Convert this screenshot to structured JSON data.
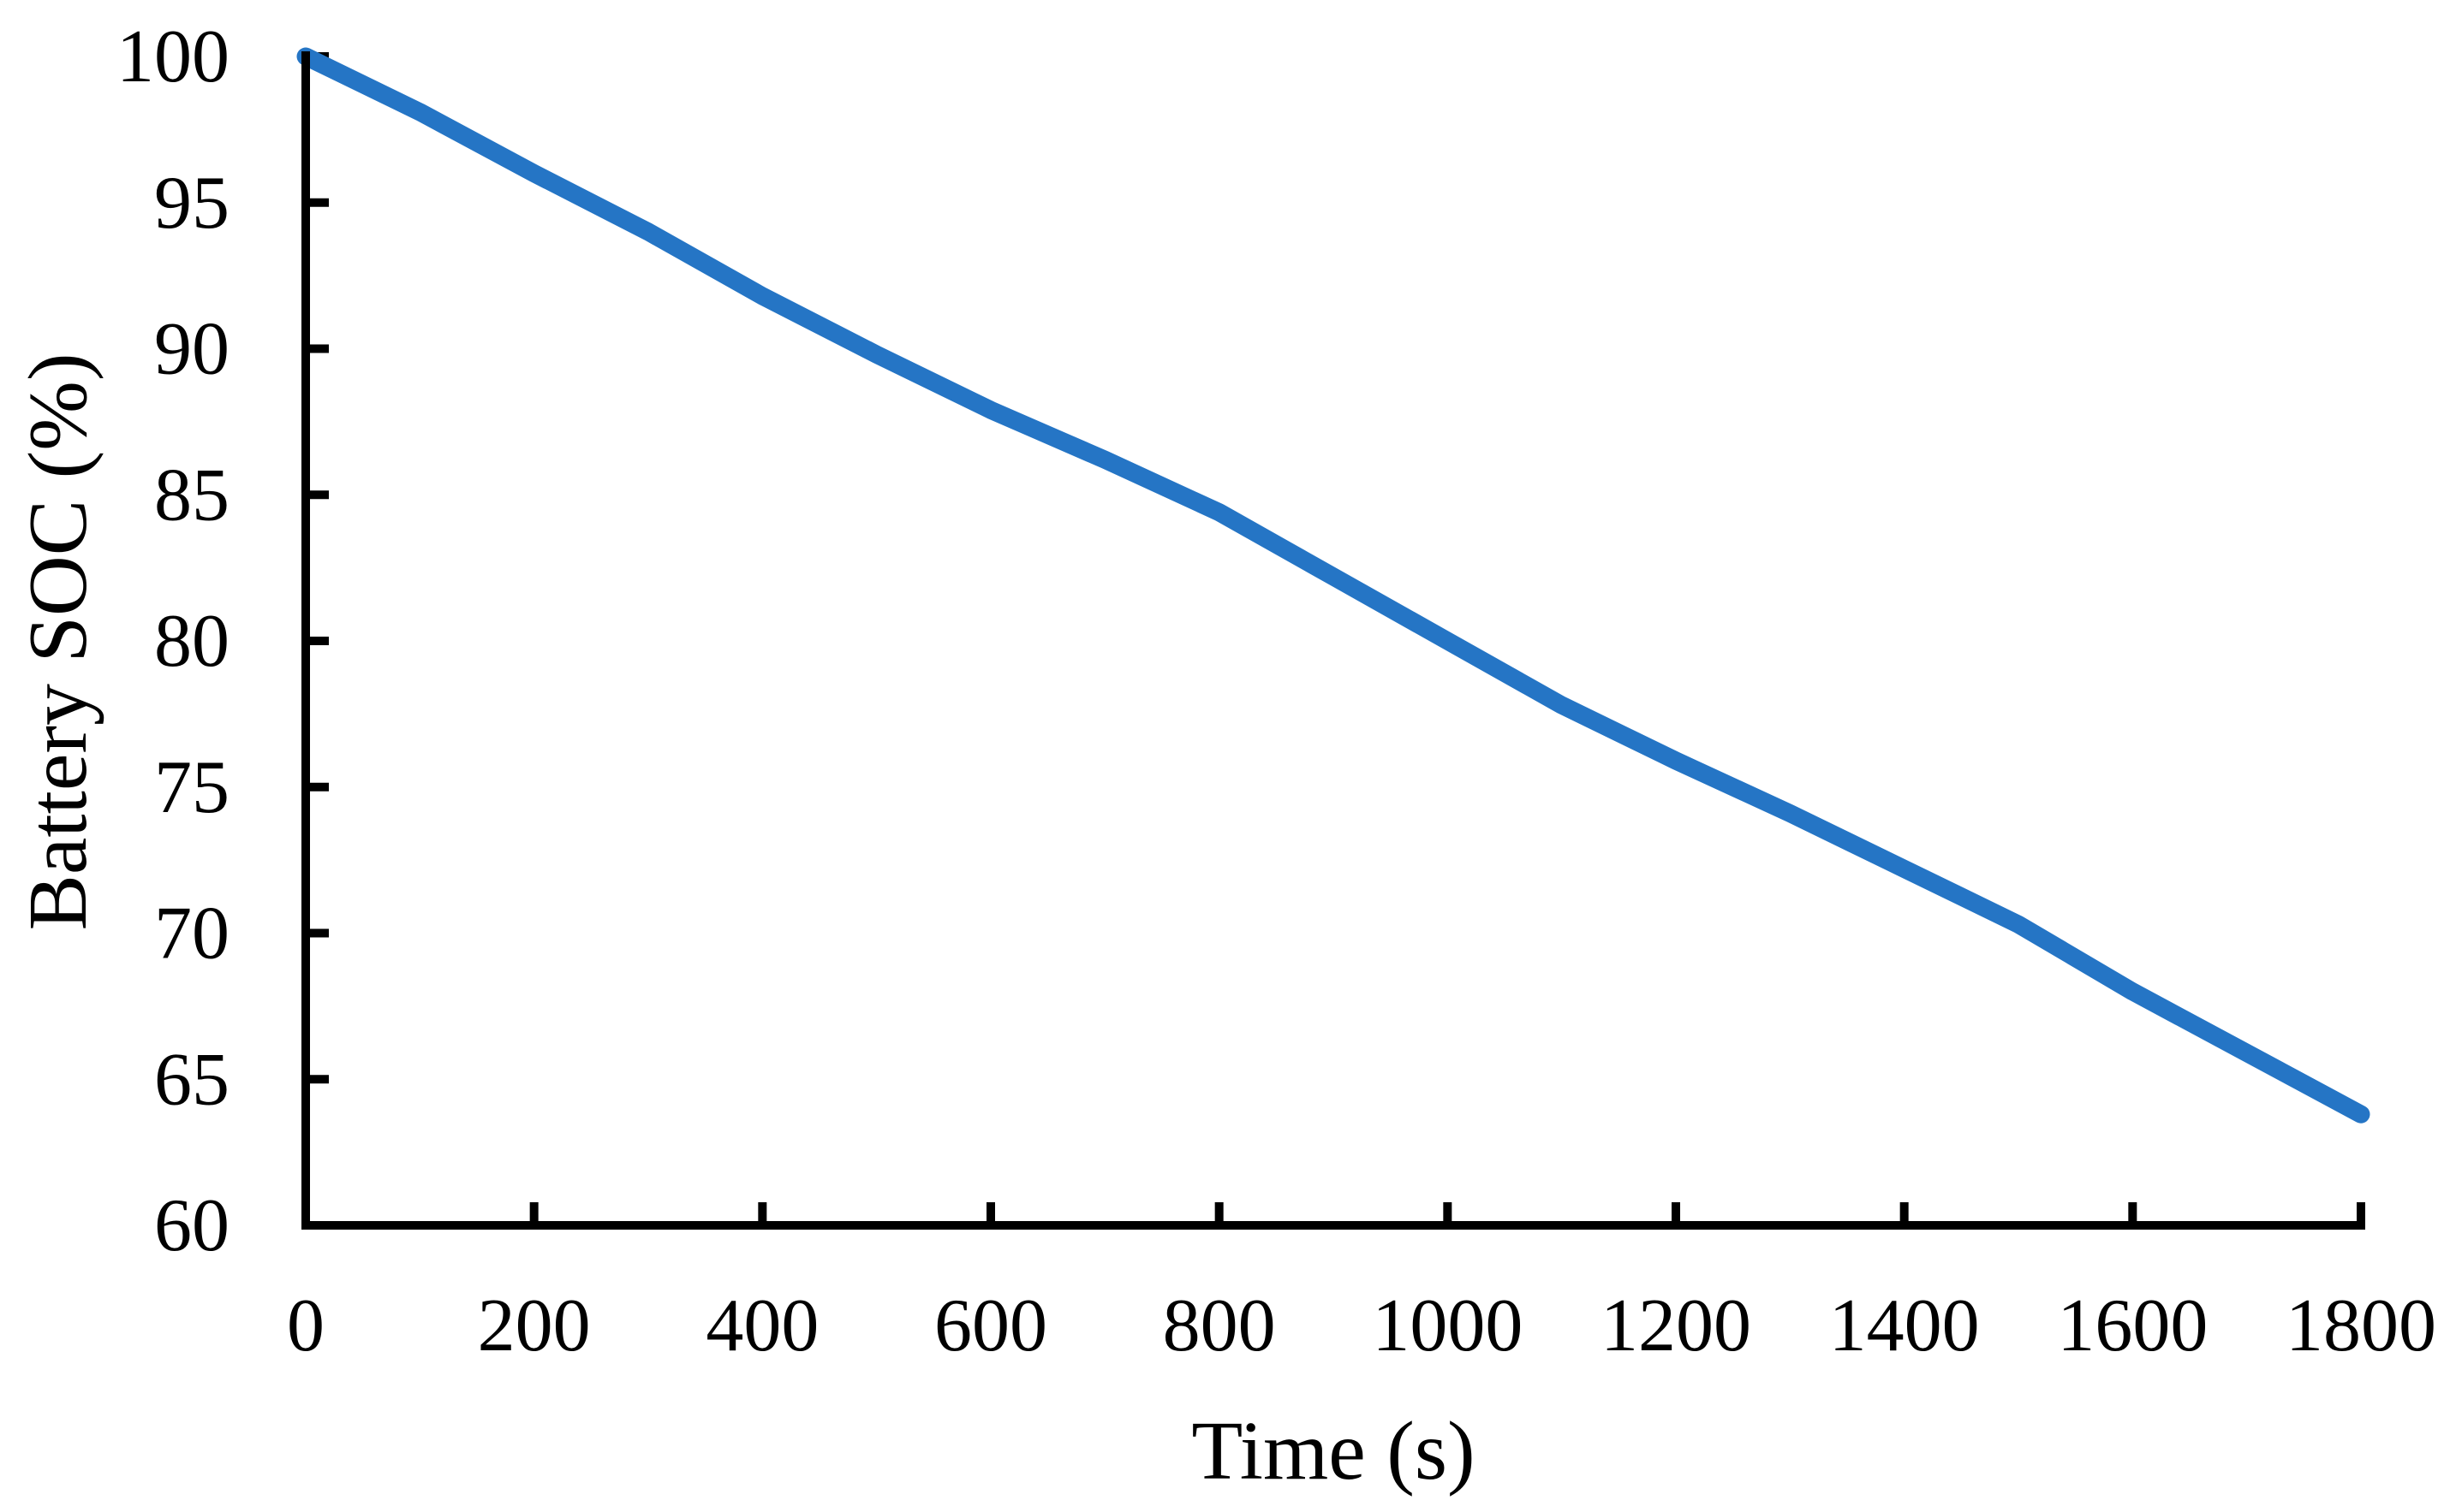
{
  "chart_data": {
    "type": "line",
    "title": "",
    "xlabel": "Time (s)",
    "ylabel": "Battery SOC (%)",
    "x": [
      0,
      100,
      200,
      300,
      400,
      500,
      600,
      700,
      800,
      900,
      1000,
      1100,
      1200,
      1300,
      1400,
      1500,
      1600,
      1700,
      1800
    ],
    "series": [
      {
        "name": "Battery SOC",
        "values": [
          100.0,
          98.1,
          96.0,
          94.0,
          91.8,
          89.8,
          87.9,
          86.2,
          84.4,
          82.2,
          80.0,
          77.8,
          75.9,
          74.1,
          72.2,
          70.3,
          68.0,
          65.9,
          63.8
        ]
      }
    ],
    "xlim": [
      0,
      1800
    ],
    "ylim": [
      60,
      100
    ],
    "x_ticks": [
      0,
      200,
      400,
      600,
      800,
      1000,
      1200,
      1400,
      1600,
      1800
    ],
    "y_ticks": [
      60,
      65,
      70,
      75,
      80,
      85,
      90,
      95,
      100
    ],
    "grid": false,
    "legend_position": "none",
    "colors": {
      "line": "#2575C5",
      "axis": "#000000",
      "text": "#000000",
      "background": "#ffffff"
    }
  }
}
